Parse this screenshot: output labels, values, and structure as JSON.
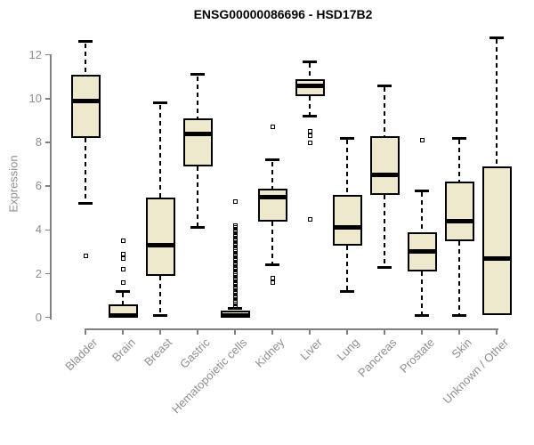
{
  "chart_data": {
    "type": "boxplot",
    "title": "ENSG00000086696 - HSD17B2",
    "ylabel": "Expression",
    "xlabel": "",
    "ylim": [
      0,
      12
    ],
    "yticks": [
      0,
      2,
      4,
      6,
      8,
      10,
      12
    ],
    "grid": false,
    "legend": null,
    "categories": [
      "Bladder",
      "Brain",
      "Breast",
      "Gastric",
      "Hematopoietic cells",
      "Kidney",
      "Liver",
      "Lung",
      "Pancreas",
      "Prostate",
      "Skin",
      "Unknown / Other"
    ],
    "series": [
      {
        "category": "Bladder",
        "whisker_low": 5.2,
        "q1": 8.2,
        "median": 9.9,
        "q3": 11.1,
        "whisker_high": 12.6,
        "outliers": [
          2.8
        ]
      },
      {
        "category": "Brain",
        "whisker_low": 0,
        "q1": 0,
        "median": 0.1,
        "q3": 0.6,
        "whisker_high": 1.2,
        "outliers": [
          3.5,
          2.9,
          2.7,
          2.2,
          1.6
        ]
      },
      {
        "category": "Breast",
        "whisker_low": 0.1,
        "q1": 1.9,
        "median": 3.3,
        "q3": 5.5,
        "whisker_high": 9.8,
        "outliers": []
      },
      {
        "category": "Gastric",
        "whisker_low": 4.1,
        "q1": 6.9,
        "median": 8.4,
        "q3": 9.1,
        "whisker_high": 11.1,
        "outliers": []
      },
      {
        "category": "Hematopoietic cells",
        "whisker_low": 0,
        "q1": 0,
        "median": 0.1,
        "q3": 0.3,
        "whisker_high": 0.4,
        "outliers": [
          5.3,
          4.2,
          4.1,
          4.0,
          3.9,
          3.8,
          3.7,
          3.6,
          3.5,
          3.4,
          3.3,
          3.2,
          3.1,
          3.0,
          2.9,
          2.8,
          2.7,
          2.6,
          2.5,
          2.4,
          2.3,
          2.2,
          2.1,
          2.0,
          1.9,
          1.8,
          1.7,
          1.6,
          1.5,
          1.4,
          1.3,
          1.2,
          1.1,
          1.0,
          0.9,
          0.8,
          0.7,
          0.6,
          0.5
        ]
      },
      {
        "category": "Kidney",
        "whisker_low": 2.4,
        "q1": 4.4,
        "median": 5.5,
        "q3": 5.9,
        "whisker_high": 7.2,
        "outliers": [
          8.7,
          1.8,
          1.6
        ]
      },
      {
        "category": "Liver",
        "whisker_low": 9.2,
        "q1": 10.1,
        "median": 10.6,
        "q3": 10.9,
        "whisker_high": 11.7,
        "outliers": [
          8.5,
          8.3,
          8.0,
          4.5
        ]
      },
      {
        "category": "Lung",
        "whisker_low": 1.2,
        "q1": 3.3,
        "median": 4.1,
        "q3": 5.6,
        "whisker_high": 8.2,
        "outliers": []
      },
      {
        "category": "Pancreas",
        "whisker_low": 2.3,
        "q1": 5.6,
        "median": 6.5,
        "q3": 8.3,
        "whisker_high": 10.6,
        "outliers": []
      },
      {
        "category": "Prostate",
        "whisker_low": 0.1,
        "q1": 2.1,
        "median": 3.0,
        "q3": 3.9,
        "whisker_high": 5.8,
        "outliers": [
          8.1
        ]
      },
      {
        "category": "Skin",
        "whisker_low": 0.1,
        "q1": 3.5,
        "median": 4.4,
        "q3": 6.2,
        "whisker_high": 8.2,
        "outliers": []
      },
      {
        "category": "Unknown / Other",
        "whisker_low": 0.1,
        "q1": 0.1,
        "median": 2.7,
        "q3": 6.9,
        "whisker_high": 12.8,
        "outliers": []
      }
    ],
    "colors": {
      "box_fill": "#EEE8CD",
      "box_border": "#000000",
      "median": "#000000",
      "whisker": "#000000",
      "outlier": "#000000",
      "axis": "#808080",
      "tick_label": "#8E8E93",
      "title": "#000000"
    }
  }
}
